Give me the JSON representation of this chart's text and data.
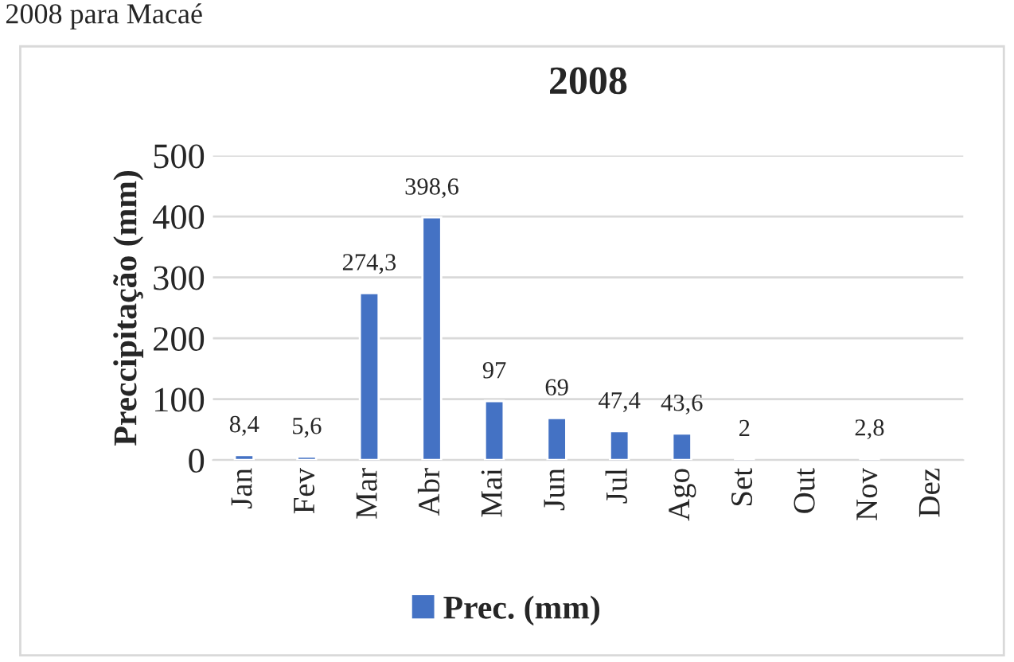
{
  "chart_data": {
    "type": "bar",
    "title": "2008",
    "ylabel": "Preccipitação (mm)",
    "annotations": [
      "2008 para Macaé"
    ],
    "categories": [
      "Jan",
      "Fev",
      "Mar",
      "Abr",
      "Mai",
      "Jun",
      "Jul",
      "Ago",
      "Set",
      "Out",
      "Nov",
      "Dez"
    ],
    "series": [
      {
        "name": "Prec. (mm)",
        "color": "#4472c4",
        "values": [
          8.4,
          5.6,
          274.3,
          398.6,
          97,
          69,
          47.4,
          43.6,
          2,
          null,
          2.8,
          null
        ],
        "value_labels": [
          "8,4",
          "5,6",
          "274,3",
          "398,6",
          "97",
          "69",
          "47,4",
          "43,6",
          "2",
          null,
          "2,8",
          null
        ]
      }
    ],
    "ylim": [
      0,
      500
    ],
    "yticks": [
      0,
      100,
      200,
      300,
      400,
      500
    ],
    "grid": "y",
    "legend": "bottom"
  }
}
